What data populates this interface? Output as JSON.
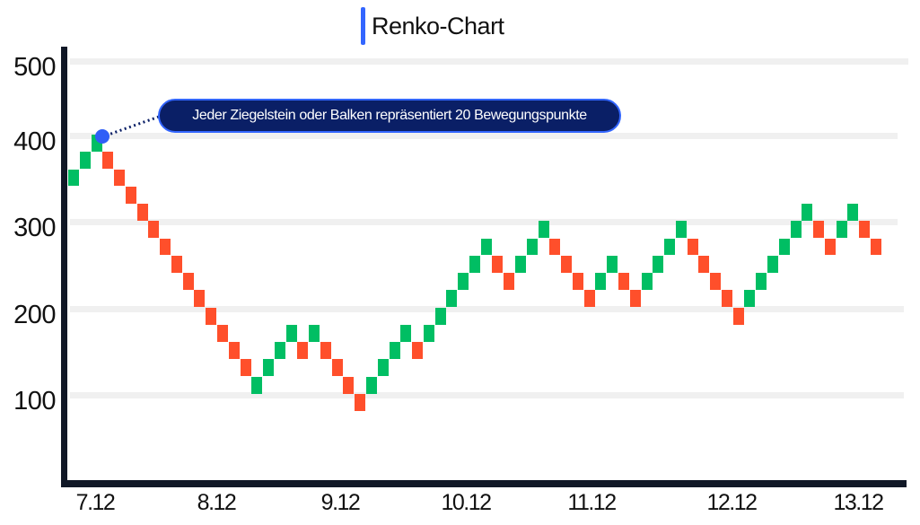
{
  "title": "Renko-Chart",
  "colors": {
    "up": "#00be63",
    "down": "#ff4f2b",
    "accent": "#3366ff",
    "tooltip_bg": "#0a1f66",
    "axis": "#111827",
    "grid": "#f0f0f0"
  },
  "annotation": {
    "text": "Jeder Ziegelstein oder Balken repräsentiert 20 Bewegungspunkte"
  },
  "chart_data": {
    "type": "renko",
    "title": "Renko-Chart",
    "xlabel": "",
    "ylabel": "",
    "brick_size": 20,
    "ylim": [
      0,
      500
    ],
    "y_ticks": [
      100,
      200,
      300,
      400,
      500
    ],
    "x_ticks": [
      "7.12",
      "8.12",
      "9.12",
      "10.12",
      "11.12",
      "12.12",
      "13.12"
    ],
    "grid": true,
    "annotation": "Jeder Ziegelstein oder Balken repräsentiert 20 Bewegungspunkte",
    "bricks": [
      {
        "dir": "up",
        "top": 360
      },
      {
        "dir": "up",
        "top": 380
      },
      {
        "dir": "up",
        "top": 400
      },
      {
        "dir": "down",
        "top": 380
      },
      {
        "dir": "down",
        "top": 360
      },
      {
        "dir": "down",
        "top": 340
      },
      {
        "dir": "down",
        "top": 320
      },
      {
        "dir": "down",
        "top": 300
      },
      {
        "dir": "down",
        "top": 280
      },
      {
        "dir": "down",
        "top": 260
      },
      {
        "dir": "down",
        "top": 240
      },
      {
        "dir": "down",
        "top": 220
      },
      {
        "dir": "down",
        "top": 200
      },
      {
        "dir": "down",
        "top": 180
      },
      {
        "dir": "down",
        "top": 160
      },
      {
        "dir": "down",
        "top": 140
      },
      {
        "dir": "up",
        "top": 120
      },
      {
        "dir": "up",
        "top": 140
      },
      {
        "dir": "up",
        "top": 160
      },
      {
        "dir": "up",
        "top": 180
      },
      {
        "dir": "down",
        "top": 160
      },
      {
        "dir": "up",
        "top": 180
      },
      {
        "dir": "down",
        "top": 160
      },
      {
        "dir": "down",
        "top": 140
      },
      {
        "dir": "down",
        "top": 120
      },
      {
        "dir": "down",
        "top": 100
      },
      {
        "dir": "up",
        "top": 120
      },
      {
        "dir": "up",
        "top": 140
      },
      {
        "dir": "up",
        "top": 160
      },
      {
        "dir": "up",
        "top": 180
      },
      {
        "dir": "down",
        "top": 160
      },
      {
        "dir": "up",
        "top": 180
      },
      {
        "dir": "up",
        "top": 200
      },
      {
        "dir": "up",
        "top": 220
      },
      {
        "dir": "up",
        "top": 240
      },
      {
        "dir": "up",
        "top": 260
      },
      {
        "dir": "up",
        "top": 280
      },
      {
        "dir": "down",
        "top": 260
      },
      {
        "dir": "down",
        "top": 240
      },
      {
        "dir": "up",
        "top": 260
      },
      {
        "dir": "up",
        "top": 280
      },
      {
        "dir": "up",
        "top": 300
      },
      {
        "dir": "down",
        "top": 280
      },
      {
        "dir": "down",
        "top": 260
      },
      {
        "dir": "down",
        "top": 240
      },
      {
        "dir": "down",
        "top": 220
      },
      {
        "dir": "up",
        "top": 240
      },
      {
        "dir": "up",
        "top": 260
      },
      {
        "dir": "down",
        "top": 240
      },
      {
        "dir": "down",
        "top": 220
      },
      {
        "dir": "up",
        "top": 240
      },
      {
        "dir": "up",
        "top": 260
      },
      {
        "dir": "up",
        "top": 280
      },
      {
        "dir": "up",
        "top": 300
      },
      {
        "dir": "down",
        "top": 280
      },
      {
        "dir": "down",
        "top": 260
      },
      {
        "dir": "down",
        "top": 240
      },
      {
        "dir": "down",
        "top": 220
      },
      {
        "dir": "down",
        "top": 200
      },
      {
        "dir": "up",
        "top": 220
      },
      {
        "dir": "up",
        "top": 240
      },
      {
        "dir": "up",
        "top": 260
      },
      {
        "dir": "up",
        "top": 280
      },
      {
        "dir": "up",
        "top": 300
      },
      {
        "dir": "up",
        "top": 320
      },
      {
        "dir": "down",
        "top": 300
      },
      {
        "dir": "down",
        "top": 280
      },
      {
        "dir": "up",
        "top": 300
      },
      {
        "dir": "up",
        "top": 320
      },
      {
        "dir": "down",
        "top": 300
      },
      {
        "dir": "down",
        "top": 280
      }
    ]
  }
}
